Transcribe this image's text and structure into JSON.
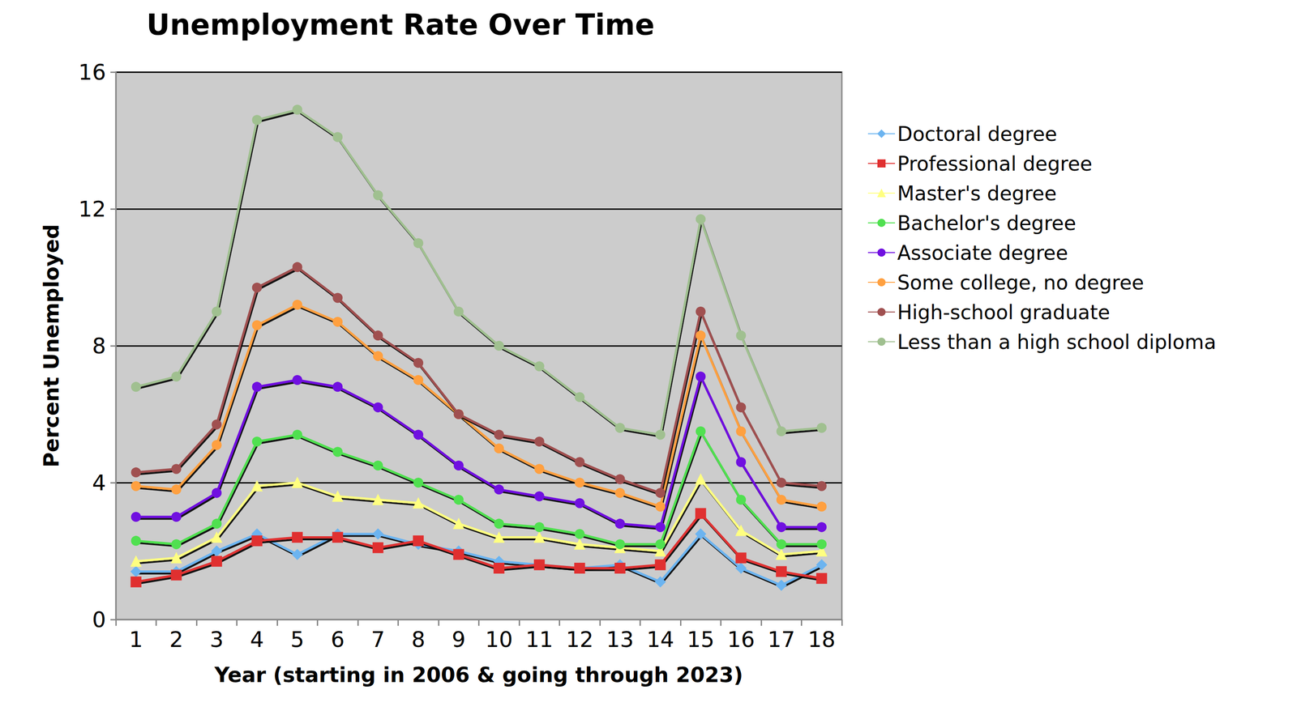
{
  "chart_data": {
    "type": "line",
    "title": "Unemployment Rate Over Time",
    "x_label": "Year (starting in 2006 & going through 2023)",
    "y_label": "Percent Unemployed",
    "categories": [
      1,
      2,
      3,
      4,
      5,
      6,
      7,
      8,
      9,
      10,
      11,
      12,
      13,
      14,
      15,
      16,
      17,
      18
    ],
    "series": [
      {
        "name": "Doctoral degree",
        "color": "#6cb4f0",
        "marker": "diamond",
        "values": [
          1.4,
          1.4,
          2.0,
          2.5,
          1.9,
          2.5,
          2.5,
          2.2,
          2.0,
          1.7,
          1.6,
          1.5,
          1.6,
          1.1,
          2.5,
          1.5,
          1.0,
          1.6
        ]
      },
      {
        "name": "Professional degree",
        "color": "#e03030",
        "marker": "square",
        "values": [
          1.1,
          1.3,
          1.7,
          2.3,
          2.4,
          2.4,
          2.1,
          2.3,
          1.9,
          1.5,
          1.6,
          1.5,
          1.5,
          1.6,
          3.1,
          1.8,
          1.4,
          1.2
        ]
      },
      {
        "name": "Master's degree",
        "color": "#ffff80",
        "marker": "triangle",
        "values": [
          1.7,
          1.8,
          2.4,
          3.9,
          4.0,
          3.6,
          3.5,
          3.4,
          2.8,
          2.4,
          2.4,
          2.2,
          2.1,
          2.0,
          4.1,
          2.6,
          1.9,
          2.0
        ]
      },
      {
        "name": "Bachelor's degree",
        "color": "#50e050",
        "marker": "circle",
        "values": [
          2.3,
          2.2,
          2.8,
          5.2,
          5.4,
          4.9,
          4.5,
          4.0,
          3.5,
          2.8,
          2.7,
          2.5,
          2.2,
          2.2,
          5.5,
          3.5,
          2.2,
          2.2
        ]
      },
      {
        "name": "Associate degree",
        "color": "#7010e0",
        "marker": "circle",
        "values": [
          3.0,
          3.0,
          3.7,
          6.8,
          7.0,
          6.8,
          6.2,
          5.4,
          4.5,
          3.8,
          3.6,
          3.4,
          2.8,
          2.7,
          7.1,
          4.6,
          2.7,
          2.7
        ]
      },
      {
        "name": "Some college, no degree",
        "color": "#ffa040",
        "marker": "circle",
        "values": [
          3.9,
          3.8,
          5.1,
          8.6,
          9.2,
          8.7,
          7.7,
          7.0,
          6.0,
          5.0,
          4.4,
          4.0,
          3.7,
          3.3,
          8.3,
          5.5,
          3.5,
          3.3
        ]
      },
      {
        "name": "High-school graduate",
        "color": "#a05050",
        "marker": "circle",
        "values": [
          4.3,
          4.4,
          5.7,
          9.7,
          10.3,
          9.4,
          8.3,
          7.5,
          6.0,
          5.4,
          5.2,
          4.6,
          4.1,
          3.7,
          9.0,
          6.2,
          4.0,
          3.9
        ]
      },
      {
        "name": "Less than a high school diploma",
        "color": "#a0c090",
        "marker": "circle",
        "values": [
          6.8,
          7.1,
          9.0,
          14.6,
          14.9,
          14.1,
          12.4,
          11.0,
          9.0,
          8.0,
          7.4,
          6.5,
          5.6,
          5.4,
          11.7,
          8.3,
          5.5,
          5.6
        ]
      }
    ],
    "ylim": [
      0,
      16
    ],
    "yticks": [
      0,
      4,
      8,
      12,
      16
    ],
    "grid": true,
    "legend": "right"
  }
}
